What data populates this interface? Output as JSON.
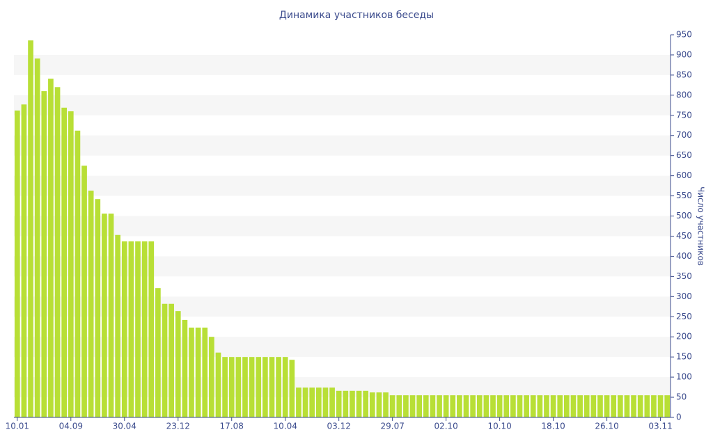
{
  "chart_data": {
    "type": "bar",
    "title": "Динамика участников беседы",
    "y_label": "Число участников",
    "categories": [
      "10.01",
      null,
      null,
      null,
      null,
      null,
      null,
      null,
      "04.09",
      null,
      null,
      null,
      null,
      null,
      null,
      null,
      "30.04",
      null,
      null,
      null,
      null,
      null,
      null,
      null,
      "23.12",
      null,
      null,
      null,
      null,
      null,
      null,
      null,
      "17.08",
      null,
      null,
      null,
      null,
      null,
      null,
      null,
      "10.04",
      null,
      null,
      null,
      null,
      null,
      null,
      null,
      "03.12",
      null,
      null,
      null,
      null,
      null,
      null,
      null,
      "29.07",
      null,
      null,
      null,
      null,
      null,
      null,
      null,
      "02.10",
      null,
      null,
      null,
      null,
      null,
      null,
      null,
      "10.10",
      null,
      null,
      null,
      null,
      null,
      null,
      null,
      "18.10",
      null,
      null,
      null,
      null,
      null,
      null,
      null,
      "26.10",
      null,
      null,
      null,
      null,
      null,
      null,
      null,
      "03.11",
      null
    ],
    "values": [
      762,
      777,
      936,
      891,
      810,
      841,
      820,
      769,
      760,
      712,
      625,
      563,
      542,
      506,
      506,
      453,
      437,
      437,
      437,
      437,
      437,
      321,
      282,
      282,
      264,
      242,
      223,
      223,
      223,
      200,
      161,
      150,
      150,
      150,
      150,
      150,
      150,
      150,
      150,
      150,
      150,
      143,
      74,
      74,
      74,
      74,
      74,
      74,
      66,
      66,
      66,
      66,
      66,
      62,
      62,
      62,
      55,
      55,
      55,
      55,
      55,
      55,
      55,
      55,
      55,
      55,
      55,
      55,
      55,
      55,
      55,
      55,
      55,
      55,
      55,
      55,
      55,
      55,
      55,
      55,
      55,
      55,
      55,
      55,
      55,
      55,
      55,
      55,
      55,
      55,
      55,
      55,
      55,
      55,
      55,
      55,
      55,
      55
    ],
    "color": "#b8df36",
    "ylim": [
      0,
      950
    ],
    "yticks": [
      0,
      50,
      100,
      150,
      200,
      250,
      300,
      350,
      400,
      450,
      500,
      550,
      600,
      650,
      700,
      750,
      800,
      850,
      900,
      950
    ],
    "grid": "bands",
    "y_axis_side": "right"
  }
}
